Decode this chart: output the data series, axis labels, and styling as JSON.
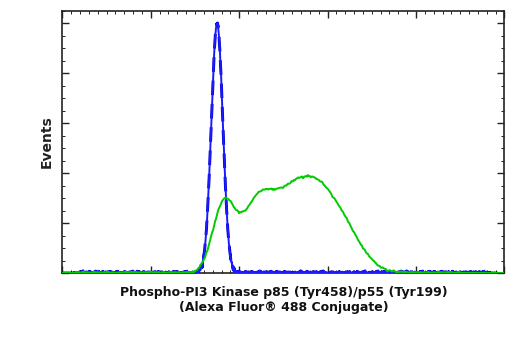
{
  "title_line1": "Phospho-PI3 Kinase p85 (Tyr458)/p55 (Tyr199)",
  "title_line2": "(Alexa Fluor® 488 Conjugate)",
  "ylabel": "Events",
  "blue_solid_color": "#1a1aff",
  "blue_dashed_color": "#0000cc",
  "green_color": "#00cc00",
  "bg_color": "#ffffff",
  "plot_bg_color": "#ffffff",
  "title_fontsize": 9.0,
  "ylabel_fontsize": 10,
  "line_width": 1.4
}
